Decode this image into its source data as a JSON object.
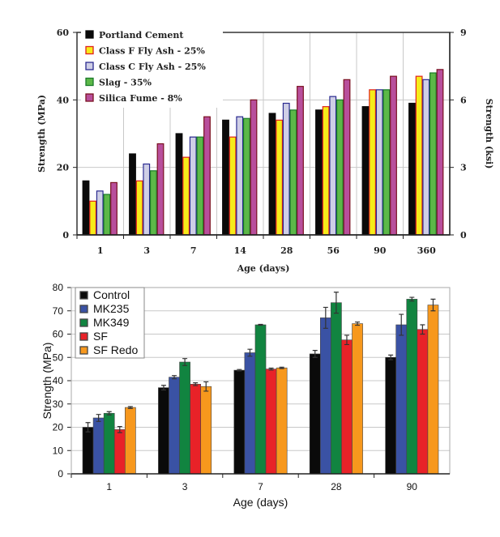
{
  "chart_data": [
    {
      "type": "bar",
      "title": "",
      "xlabel": "Age (days)",
      "ylabel": "Strength (MPa)",
      "y2label": "Strength (ksi)",
      "ylim": [
        0,
        60
      ],
      "yticks": [
        0,
        20,
        40,
        60
      ],
      "y2lim": [
        0,
        9
      ],
      "y2ticks": [
        0,
        3,
        6,
        9
      ],
      "grid": true,
      "legend": "top-left",
      "categories": [
        "1",
        "3",
        "7",
        "14",
        "28",
        "56",
        "90",
        "360"
      ],
      "series": [
        {
          "name": "Portland Cement",
          "color": "#0a0a0a",
          "edge": "#0a0a0a",
          "values": [
            16,
            24,
            30,
            34,
            36,
            37,
            38,
            39
          ]
        },
        {
          "name": "Class F Fly Ash - 25%",
          "color": "#f5ec1a",
          "edge": "#e0201c",
          "values": [
            10,
            16,
            23,
            29,
            34,
            38,
            43,
            47
          ]
        },
        {
          "name": "Class C Fly Ash - 25%",
          "color": "#cfcfe6",
          "edge": "#2a2a90",
          "values": [
            13,
            21,
            29,
            35,
            39,
            41,
            43,
            46
          ]
        },
        {
          "name": "Slag - 35%",
          "color": "#5cb848",
          "edge": "#1a7a2a",
          "values": [
            12,
            19,
            29,
            34.5,
            37,
            40,
            43,
            48
          ]
        },
        {
          "name": "Silica Fume - 8%",
          "color": "#b84f9c",
          "edge": "#7a1020",
          "values": [
            15.5,
            27,
            35,
            40,
            44,
            46,
            47,
            49
          ]
        }
      ]
    },
    {
      "type": "bar",
      "title": "",
      "xlabel": "Age (days)",
      "ylabel": "Strength (MPa)",
      "ylim": [
        0,
        80
      ],
      "yticks": [
        0,
        10,
        20,
        30,
        40,
        50,
        60,
        70,
        80
      ],
      "grid": true,
      "legend": "top-left",
      "categories": [
        "1",
        "3",
        "7",
        "28",
        "90"
      ],
      "series": [
        {
          "name": "Control",
          "color": "#0a0a0a",
          "values": [
            20,
            37,
            44.5,
            51.5,
            50
          ],
          "errors": [
            2,
            1,
            0.3,
            1.5,
            1
          ]
        },
        {
          "name": "MK235",
          "color": "#3a52a4",
          "values": [
            24,
            41.5,
            52,
            67,
            64
          ],
          "errors": [
            1.5,
            0.7,
            1.5,
            4.5,
            4.5
          ]
        },
        {
          "name": "MK349",
          "color": "#118440",
          "values": [
            26,
            48,
            64,
            73.5,
            75
          ],
          "errors": [
            0.7,
            1.5,
            0.2,
            4.5,
            0.8
          ]
        },
        {
          "name": "SF",
          "color": "#e82228",
          "values": [
            19,
            38.5,
            45,
            57.5,
            62
          ],
          "errors": [
            1.3,
            0.6,
            0.4,
            2,
            2
          ]
        },
        {
          "name": "SF Redo",
          "color": "#f7981d",
          "values": [
            28.5,
            37.5,
            45.5,
            64.5,
            72.5
          ],
          "errors": [
            0.4,
            2,
            0.3,
            0.7,
            2.5
          ]
        }
      ]
    }
  ]
}
